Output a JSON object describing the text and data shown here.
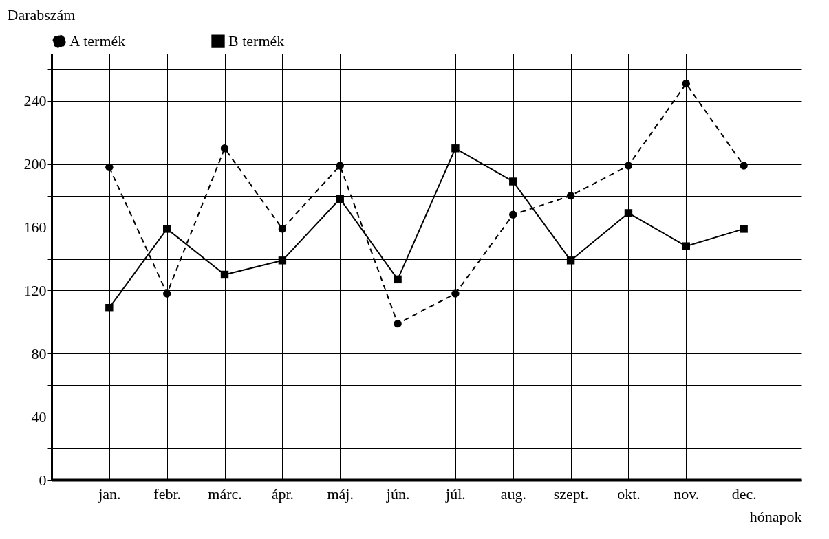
{
  "chart_data": {
    "type": "line",
    "xlabel": "hónapok",
    "ylabel": "Darabszám",
    "categories": [
      "jan.",
      "febr.",
      "márc.",
      "ápr.",
      "máj.",
      "jún.",
      "júl.",
      "aug.",
      "szept.",
      "okt.",
      "nov.",
      "dec."
    ],
    "series": [
      {
        "name": "A termék",
        "color": "#000000",
        "marker": "circle",
        "line_style": "dashed",
        "values": [
          198,
          118,
          210,
          159,
          199,
          99,
          118,
          168,
          180,
          199,
          251,
          199
        ]
      },
      {
        "name": "B termék",
        "color": "#000000",
        "marker": "square",
        "line_style": "solid",
        "values": [
          109,
          159,
          130,
          139,
          178,
          127,
          210,
          189,
          139,
          169,
          148,
          159
        ]
      }
    ],
    "ylim": [
      0,
      270
    ],
    "yticks": [
      0,
      {
        "value": 20,
        "label": null
      },
      40,
      {
        "value": 60,
        "label": null
      },
      80,
      {
        "value": 100,
        "label": null
      },
      120,
      {
        "value": 140,
        "label": null
      },
      160,
      {
        "value": 180,
        "label": null
      },
      200,
      {
        "value": 220,
        "label": null
      },
      240,
      {
        "value": 260,
        "label": null
      }
    ],
    "grid": true,
    "legend": "top"
  }
}
